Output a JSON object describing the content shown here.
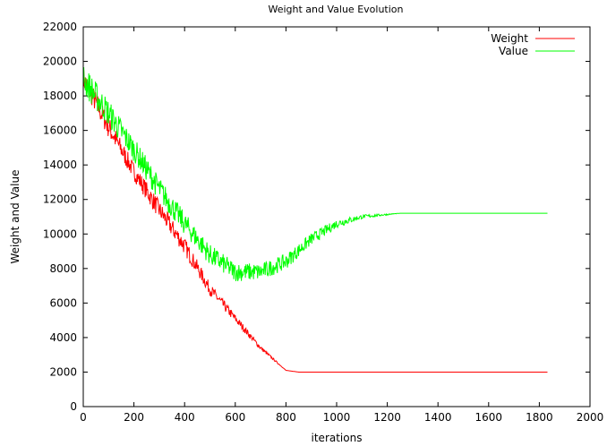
{
  "chart_data": {
    "type": "line",
    "title": "Weight and Value Evolution",
    "xlabel": "iterations",
    "ylabel": "Weight and Value",
    "xlim": [
      0,
      2000
    ],
    "ylim": [
      0,
      22000
    ],
    "x_ticks": [
      0,
      200,
      400,
      600,
      800,
      1000,
      1200,
      1400,
      1600,
      1800,
      2000
    ],
    "y_ticks": [
      0,
      2000,
      4000,
      6000,
      8000,
      10000,
      12000,
      14000,
      16000,
      18000,
      20000,
      22000
    ],
    "grid": false,
    "legend_position": "top-right",
    "series": [
      {
        "name": "Weight",
        "color": "#ff0000",
        "noise": [
          650,
          650,
          500,
          550,
          500,
          350,
          250,
          120,
          0,
          0,
          0,
          0
        ],
        "x": [
          0,
          100,
          200,
          300,
          400,
          500,
          600,
          700,
          800,
          850,
          900,
          1833
        ],
        "y": [
          19000,
          16200,
          13600,
          11400,
          9300,
          6800,
          5100,
          3400,
          2100,
          2000,
          2000,
          2000
        ]
      },
      {
        "name": "Value",
        "color": "#00ff00",
        "noise": [
          900,
          800,
          700,
          700,
          650,
          600,
          550,
          500,
          450,
          350,
          250,
          120,
          0,
          0
        ],
        "x": [
          0,
          100,
          200,
          300,
          400,
          500,
          600,
          700,
          800,
          900,
          1000,
          1100,
          1250,
          1833
        ],
        "y": [
          19000,
          17000,
          14900,
          12600,
          10600,
          8800,
          7800,
          7800,
          8400,
          9700,
          10600,
          11000,
          11200,
          11200
        ]
      }
    ]
  }
}
